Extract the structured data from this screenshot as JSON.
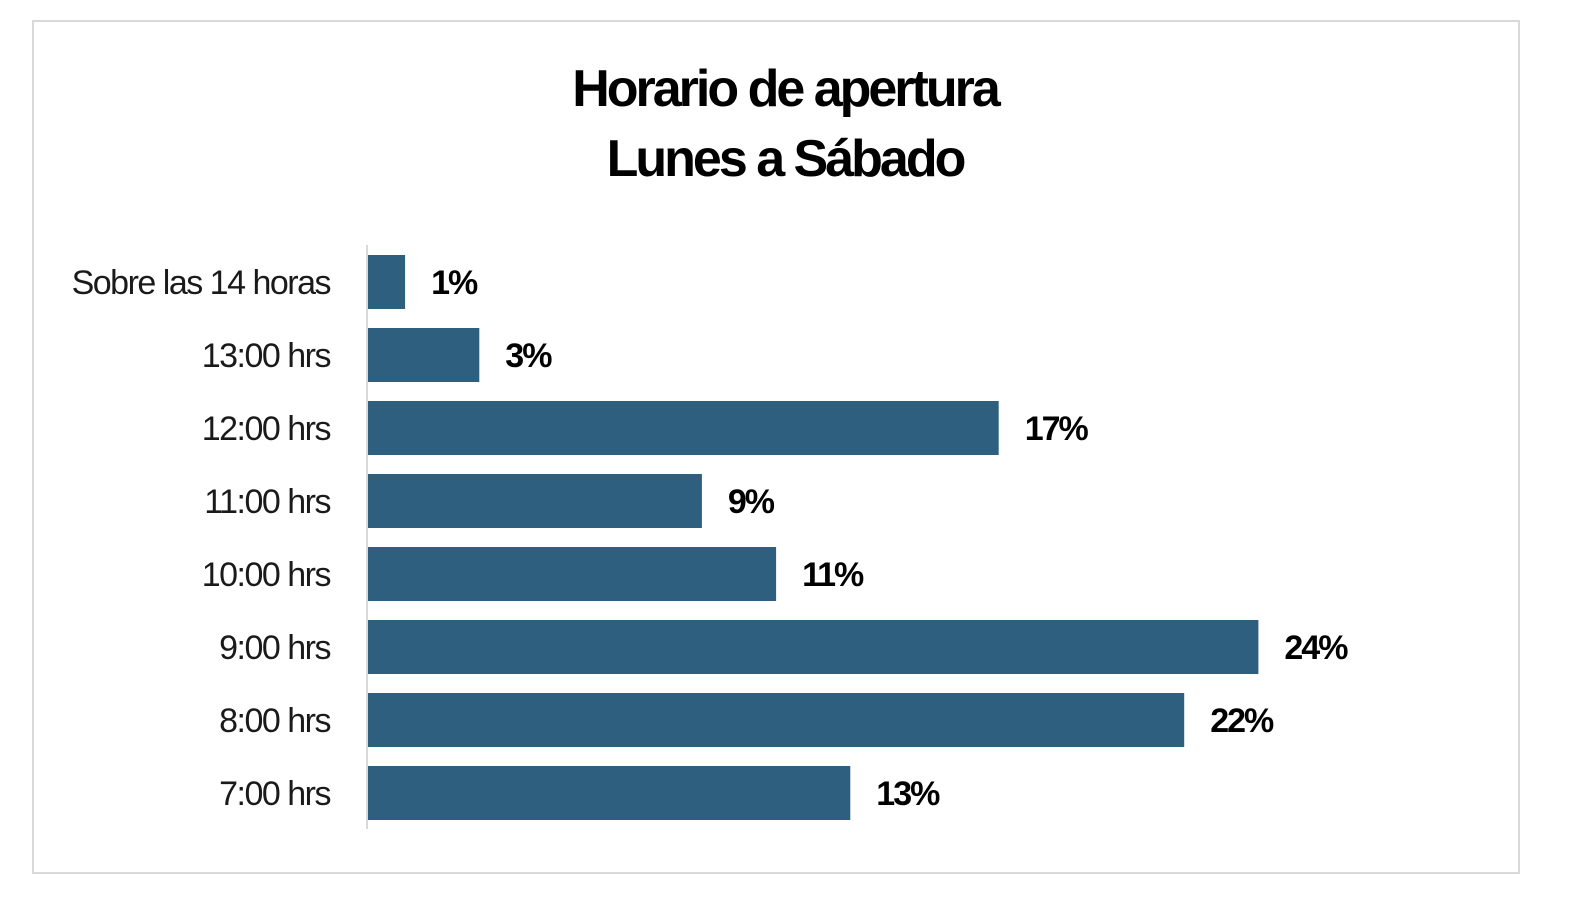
{
  "chart_data": {
    "type": "bar",
    "orientation": "horizontal",
    "title": "Horario de apertura",
    "subtitle": "Lunes a Sábado",
    "categories": [
      "Sobre las 14 horas",
      "13:00 hrs",
      "12:00 hrs",
      "11:00 hrs",
      "10:00 hrs",
      "9:00 hrs",
      "8:00 hrs",
      "7:00 hrs"
    ],
    "values": [
      1,
      3,
      17,
      9,
      11,
      24,
      22,
      13
    ],
    "value_labels": [
      "1%",
      "3%",
      "17%",
      "9%",
      "11%",
      "24%",
      "22%",
      "13%"
    ],
    "unit": "%",
    "xlim": [
      0,
      24
    ],
    "grid": false,
    "legend": "none",
    "bar_color": "#2e5f7f"
  }
}
